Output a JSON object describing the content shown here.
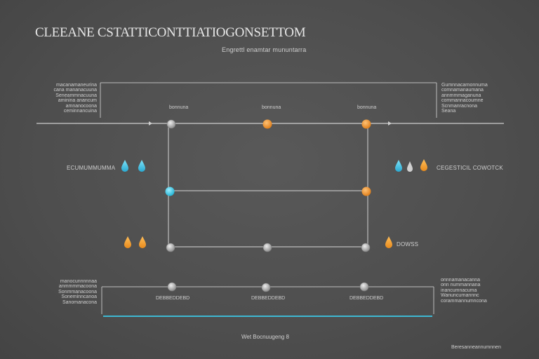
{
  "title": "CLEEANE CSTATTICONTTIATIOGONSETTOM",
  "subtitle": "Engrettl enamtar mununtarra",
  "node_labels": [
    "bonnuna",
    "bonnuna",
    "bonnuna"
  ],
  "left_notes": [
    "macanamaneurina",
    "cana mananacuuna",
    "Seneammnacuuna",
    "aminina anancum",
    "amnanocoona",
    "ceminnancuina"
  ],
  "right_notes": [
    "Gumnnacarnonnuma",
    "comnamanaumana",
    "annmmmaganuna",
    "commannacoumne",
    "Scnmanracnona",
    "Seana"
  ],
  "side_left_label": "ECUMUMMUMMA",
  "side_right_label": "CEGESTICIL COWOTCK",
  "side_right_small_label": "DOWSS",
  "bottom_left_notes": [
    "manocunnnnnaa",
    "anmmmmacoona",
    "Sonmmanacoona",
    "Soneminncanoa",
    "Sanomanacona"
  ],
  "bottom_right_notes": [
    "onnnamanacanna",
    "onn nummannana",
    "inancumnacuma",
    "Wanuncurnannnc",
    "corammannumncona"
  ],
  "bottom_labels": [
    "DEBBEDDEBD",
    "DEBBEDDEBD",
    "DEBBEDDEBD"
  ],
  "footer_center": "Wet Bocnuugeng 8",
  "footer_right": "Beresanneannumnnen",
  "colors": {
    "cyan": "#3cc7e6",
    "orange": "#f0932c",
    "amber": "#f0b224",
    "grey_node": "#c6c6c6",
    "line": "#bdbdbd"
  }
}
